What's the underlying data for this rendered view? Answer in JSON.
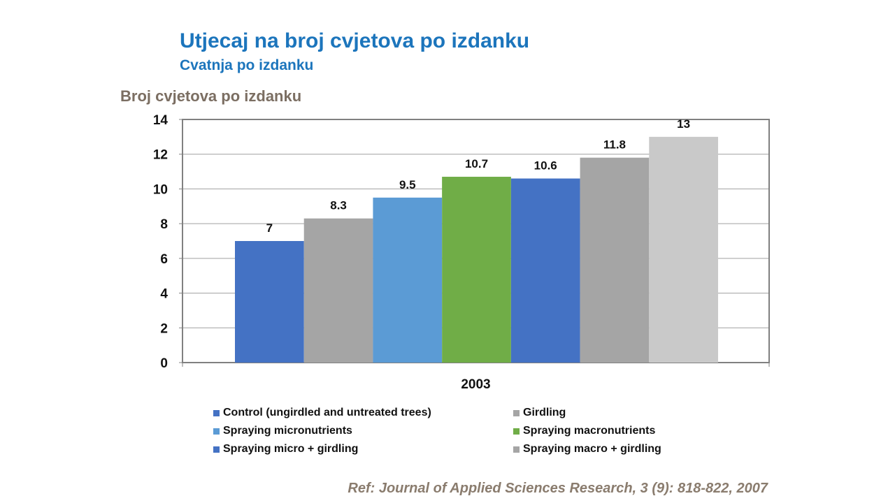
{
  "header": {
    "title": "Utjecaj na broj cvjetova po izdanku",
    "subtitle": "Cvatnja po izdanku"
  },
  "reference": "Ref: Journal of Applied Sciences Research, 3 (9): 818-822, 2007",
  "chart_data": {
    "type": "bar",
    "title": "",
    "ylabel": "Broj cvjetova po izdanku",
    "xlabel": "",
    "categories": [
      "2003"
    ],
    "ylim": [
      0,
      14
    ],
    "yticks": [
      0,
      2,
      4,
      6,
      8,
      10,
      12,
      14
    ],
    "grid": true,
    "legend_position": "bottom",
    "series": [
      {
        "name": "Control (ungirdled and untreated trees)",
        "values": [
          7
        ],
        "label": "7",
        "color": "#4472C4"
      },
      {
        "name": "Girdling",
        "values": [
          8.3
        ],
        "label": "8.3",
        "color": "#A5A5A5"
      },
      {
        "name": "Spraying micronutrients",
        "values": [
          9.5
        ],
        "label": "9.5",
        "color": "#5B9BD5"
      },
      {
        "name": "Spraying macronutrients",
        "values": [
          10.7
        ],
        "label": "10.7",
        "color": "#70AD47"
      },
      {
        "name": "Spraying micro + girdling",
        "values": [
          10.6
        ],
        "label": "10.6",
        "color": "#4472C4"
      },
      {
        "name": "Spraying macro + girdling",
        "values": [
          11.8
        ],
        "label": "11.8",
        "color": "#A5A5A5"
      },
      {
        "values": [
          13
        ],
        "label": "13",
        "color": "#C9C9C9"
      }
    ]
  }
}
